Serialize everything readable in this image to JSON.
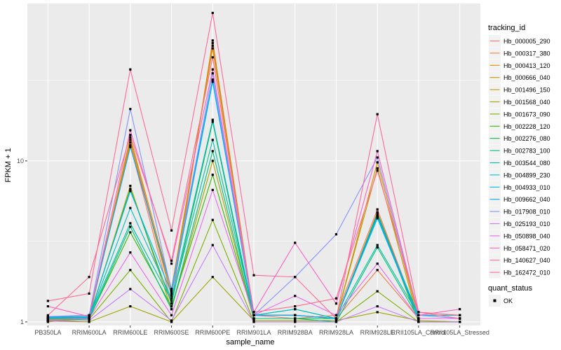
{
  "chart_data": {
    "type": "line",
    "xlabel": "sample_name",
    "ylabel": "FPKM + 1",
    "y_scale": "log10",
    "ylim": [
      0.95,
      95
    ],
    "y_ticks": [
      1,
      10
    ],
    "grid": true,
    "legend_placement": "right",
    "categories": [
      "PB350LA",
      "RRIM600LA",
      "RRIM600LE",
      "RRIM600SE",
      "RRIM600PE",
      "RRIM901LA",
      "RRIM928BA",
      "RRIM928LA",
      "RRIM928LE",
      "RRII105LA_Control",
      "RRII105LA_Stressed"
    ],
    "legend_title": "tracking_id",
    "point_legend_title": "quant_status",
    "point_legend_label": "OK",
    "series": [
      {
        "name": "Hb_000005_290",
        "color": "#F8766D",
        "values": [
          1.06,
          1.1,
          12.5,
          1.3,
          56,
          1.1,
          1.05,
          1.1,
          5.0,
          1.05,
          1.05
        ]
      },
      {
        "name": "Hb_000317_380",
        "color": "#EE8044",
        "values": [
          1.05,
          1.08,
          13.5,
          1.5,
          52,
          1.1,
          1.1,
          1.05,
          2.1,
          1.05,
          1.05
        ]
      },
      {
        "name": "Hb_000413_120",
        "color": "#E08B00",
        "values": [
          1.02,
          1.05,
          14.0,
          1.6,
          50,
          1.1,
          1.1,
          1.05,
          9.8,
          1.05,
          1.05
        ]
      },
      {
        "name": "Hb_000666_040",
        "color": "#CF9400",
        "values": [
          1.04,
          1.06,
          13.0,
          1.45,
          54,
          1.1,
          1.1,
          1.05,
          4.8,
          1.05,
          1.05
        ]
      },
      {
        "name": "Hb_001496_150",
        "color": "#B79F00",
        "values": [
          1.0,
          1.05,
          7.0,
          1.2,
          10.0,
          1.05,
          1.05,
          1.05,
          9.0,
          1.0,
          1.0
        ]
      },
      {
        "name": "Hb_001568_040",
        "color": "#9CA700",
        "values": [
          1.01,
          1.0,
          1.25,
          1.0,
          1.9,
          1.02,
          1.02,
          1.02,
          1.15,
          1.02,
          1.0
        ]
      },
      {
        "name": "Hb_001673_090",
        "color": "#7CAE00",
        "values": [
          1.02,
          1.04,
          2.1,
          1.0,
          4.3,
          1.0,
          1.0,
          1.0,
          1.55,
          1.0,
          1.0
        ]
      },
      {
        "name": "Hb_002228_120",
        "color": "#39B600",
        "values": [
          1.03,
          1.05,
          3.6,
          1.25,
          8.2,
          1.05,
          1.05,
          1.05,
          4.6,
          1.0,
          1.0
        ]
      },
      {
        "name": "Hb_002276_080",
        "color": "#00BB4E",
        "values": [
          1.05,
          1.06,
          6.7,
          1.3,
          17.5,
          1.05,
          1.05,
          1.05,
          4.7,
          1.05,
          1.05
        ]
      },
      {
        "name": "Hb_002783_100",
        "color": "#00BF7D",
        "values": [
          1.03,
          1.04,
          3.9,
          1.2,
          11.5,
          1.05,
          1.05,
          1.0,
          2.9,
          1.05,
          1.05
        ]
      },
      {
        "name": "Hb_003544_080",
        "color": "#00C1A3",
        "values": [
          1.06,
          1.07,
          4.1,
          1.35,
          13.5,
          1.1,
          1.2,
          1.05,
          3.0,
          1.1,
          1.1
        ]
      },
      {
        "name": "Hb_004899_230",
        "color": "#00BFC4",
        "values": [
          1.05,
          1.06,
          5.1,
          1.4,
          18,
          1.1,
          1.2,
          1.05,
          4.5,
          1.1,
          1.1
        ]
      },
      {
        "name": "Hb_004933_010",
        "color": "#00B8E7",
        "values": [
          1.06,
          1.08,
          6.5,
          1.5,
          31,
          1.1,
          1.1,
          1.05,
          4.4,
          1.05,
          1.05
        ]
      },
      {
        "name": "Hb_009662_040",
        "color": "#00A9FF",
        "values": [
          1.07,
          1.1,
          12.2,
          1.6,
          32,
          1.1,
          1.1,
          1.05,
          4.6,
          1.05,
          1.05
        ]
      },
      {
        "name": "Hb_017908_010",
        "color": "#8494FF",
        "values": [
          1.08,
          1.1,
          21,
          1.55,
          35,
          1.1,
          1.9,
          3.5,
          10.5,
          1.1,
          1.05
        ]
      },
      {
        "name": "Hb_025193_010",
        "color": "#C77CFF",
        "values": [
          1.01,
          1.02,
          1.6,
          1.02,
          3.0,
          1.0,
          1.0,
          1.0,
          1.25,
          1.0,
          1.0
        ]
      },
      {
        "name": "Hb_050898_040",
        "color": "#ED68ED",
        "values": [
          1.03,
          1.05,
          2.7,
          1.1,
          6.6,
          1.1,
          1.45,
          1.1,
          2.3,
          1.05,
          1.05
        ]
      },
      {
        "name": "Hb_058471_020",
        "color": "#FF61C3",
        "values": [
          1.25,
          1.08,
          15.5,
          2.3,
          37,
          1.15,
          3.1,
          1.3,
          11.5,
          1.1,
          1.2
        ]
      },
      {
        "name": "Hb_140627_040",
        "color": "#FF6C91",
        "values": [
          1.1,
          1.9,
          14.5,
          2.4,
          44,
          1.15,
          1.25,
          1.4,
          8.7,
          1.15,
          1.1
        ]
      },
      {
        "name": "Hb_162472_010",
        "color": "#FF6A98",
        "values": [
          1.35,
          1.5,
          37,
          3.7,
          83,
          1.95,
          1.9,
          1.05,
          19.5,
          1.15,
          1.05
        ]
      }
    ]
  }
}
